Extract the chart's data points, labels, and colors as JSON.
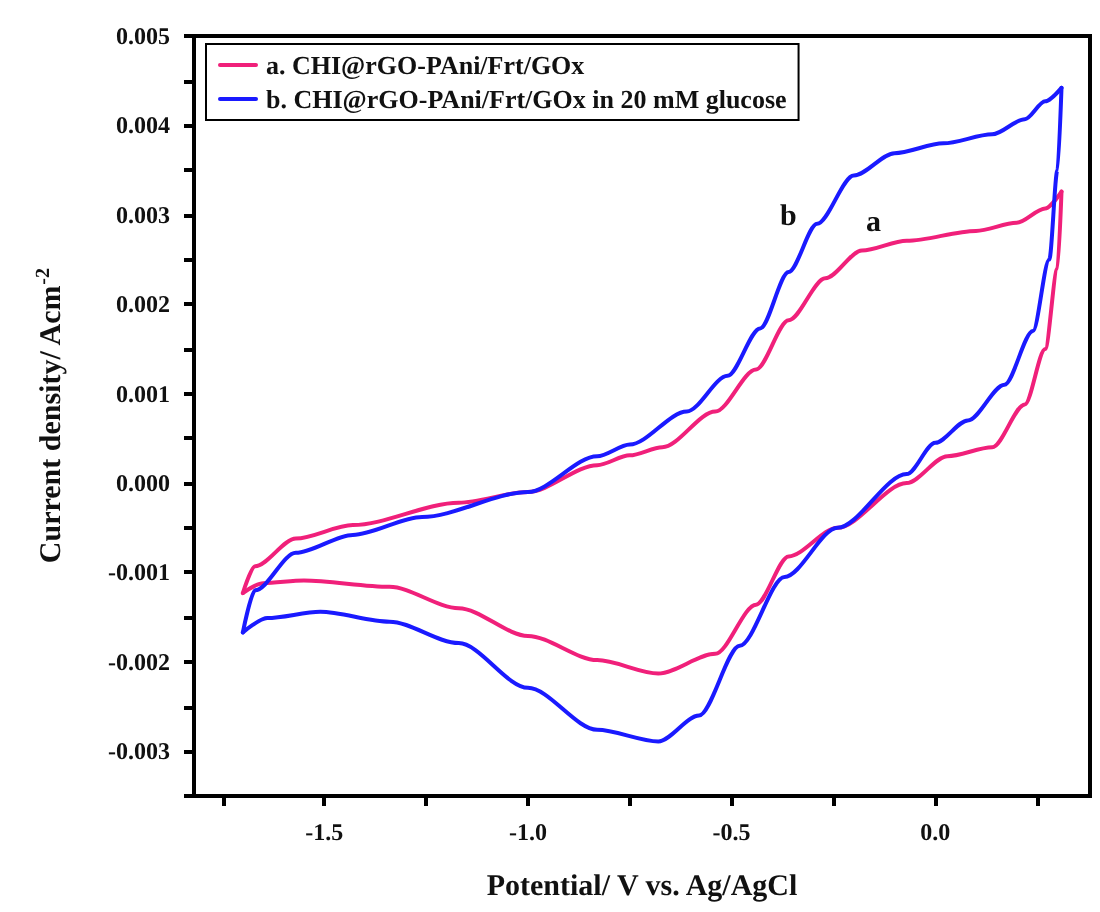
{
  "chart_data": {
    "type": "line",
    "xlabel": "Potential/ V vs. Ag/AgCl",
    "ylabel": "Current density/ Acm$^{-2}$",
    "xlim": [
      -1.82,
      0.38
    ],
    "xticks": [
      {
        "value": -1.75,
        "label": null
      },
      -1.5,
      {
        "value": -1.25,
        "label": null
      },
      {
        "value": -1,
        "label": "-1.0"
      },
      {
        "value": -0.75,
        "label": null
      },
      -0.5,
      {
        "value": -0.25,
        "label": null
      },
      {
        "value": 0,
        "label": "0.0"
      },
      {
        "value": 0.25,
        "label": null
      }
    ],
    "ylim": [
      -0.0035,
      0.005
    ],
    "yticks": [
      {
        "value": -0.0035,
        "label": null
      },
      -0.003,
      {
        "value": -0.0025,
        "label": null
      },
      -0.002,
      {
        "value": -0.0015,
        "label": null
      },
      -0.001,
      {
        "value": -0.0005,
        "label": null
      },
      {
        "value": 0,
        "label": "0.000"
      },
      {
        "value": 0.0005,
        "label": null
      },
      0.001,
      {
        "value": 0.0015,
        "label": null
      },
      0.002,
      {
        "value": 0.0025,
        "label": null
      },
      0.003,
      {
        "value": 0.0035,
        "label": null
      },
      0.004,
      {
        "value": 0.0045,
        "label": null
      },
      0.005
    ],
    "grid": false,
    "legend": "top left",
    "marker": "none",
    "line_style": "solid",
    "series": [
      {
        "name": "a. CHI@rGO-PAni/Frt/GOx",
        "color": "#f0207a",
        "x": [
          -1.7,
          -1.67,
          -1.57,
          -1.43,
          -1.17,
          -1.0,
          -0.83,
          -0.75,
          -0.67,
          -0.54,
          -0.44,
          -0.36,
          -0.27,
          -0.18,
          -0.07,
          0.1,
          0.2,
          0.27,
          0.31
        ],
        "values": [
          -0.00123,
          -0.00093,
          -0.00062,
          -0.00047,
          -0.00022,
          -0.0001,
          0.0002,
          0.00031,
          0.0004,
          0.0008,
          0.00127,
          0.00182,
          0.00229,
          0.0026,
          0.00271,
          0.00282,
          0.00291,
          0.00307,
          0.00326
        ]
      },
      {
        "color": "#f0207a",
        "x": [
          0.31,
          0.3,
          0.27,
          0.22,
          0.14,
          0.03,
          -0.07,
          -0.24,
          -0.36,
          -0.44,
          -0.54,
          -0.68,
          -0.83,
          -1.0,
          -1.17,
          -1.34,
          -1.55,
          -1.65,
          -1.7
        ],
        "values": [
          0.00326,
          0.0024,
          0.0015,
          0.00088,
          0.0004,
          0.0003,
          0.0,
          -0.0005,
          -0.00082,
          -0.00136,
          -0.00191,
          -0.00213,
          -0.00198,
          -0.00171,
          -0.0014,
          -0.00116,
          -0.00109,
          -0.00112,
          -0.00123
        ]
      },
      {
        "name": "b. CHI@rGO-PAni/Frt/GOx in 20 mM glucose",
        "color": "#1a1aff",
        "x": [
          -1.7,
          -1.67,
          -1.57,
          -1.43,
          -1.26,
          -1.0,
          -0.83,
          -0.75,
          -0.61,
          -0.51,
          -0.43,
          -0.36,
          -0.29,
          -0.2,
          -0.1,
          0.02,
          0.14,
          0.22,
          0.27,
          0.31
        ],
        "values": [
          -0.00167,
          -0.0012,
          -0.00078,
          -0.00058,
          -0.00038,
          -0.0001,
          0.0003,
          0.00043,
          0.0008,
          0.0012,
          0.00173,
          0.00236,
          0.0029,
          0.00344,
          0.00369,
          0.0038,
          0.0039,
          0.00407,
          0.00427,
          0.00442
        ]
      },
      {
        "color": "#1a1aff",
        "x": [
          0.31,
          0.3,
          0.28,
          0.24,
          0.17,
          0.08,
          0.0,
          -0.07,
          -0.24,
          -0.37,
          -0.48,
          -0.58,
          -0.68,
          -0.83,
          -1.0,
          -1.17,
          -1.34,
          -1.51,
          -1.64,
          -1.7
        ],
        "values": [
          0.00442,
          0.0035,
          0.0025,
          0.0017,
          0.0011,
          0.0007,
          0.00045,
          0.0001,
          -0.0005,
          -0.00105,
          -0.00182,
          -0.0026,
          -0.00289,
          -0.00276,
          -0.00229,
          -0.00179,
          -0.00155,
          -0.00144,
          -0.00151,
          -0.00167
        ]
      }
    ],
    "annotations": [
      "a",
      "b"
    ]
  }
}
